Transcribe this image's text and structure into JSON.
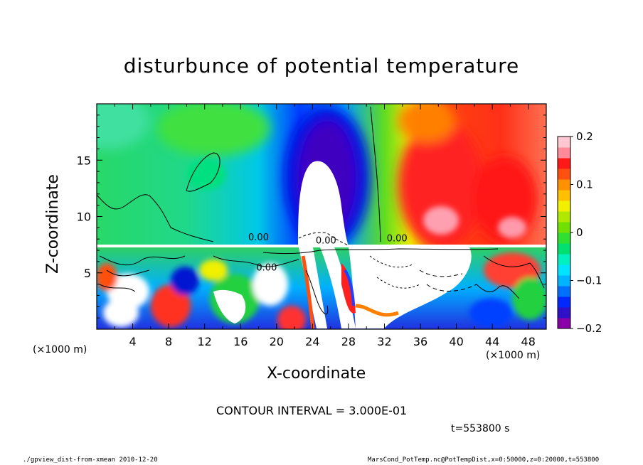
{
  "chart_data": {
    "type": "heatmap",
    "title": "disturbunce of potential temperature",
    "xlabel": "X-coordinate",
    "ylabel": "Z-coordinate",
    "x_unit_label": "(×1000 m)",
    "xlim": [
      0,
      50
    ],
    "ylim": [
      0,
      20
    ],
    "x_ticks": [
      "4",
      "8",
      "12",
      "16",
      "20",
      "24",
      "28",
      "32",
      "36",
      "40",
      "44",
      "48"
    ],
    "x_tick_values": [
      4,
      8,
      12,
      16,
      20,
      24,
      28,
      32,
      36,
      40,
      44,
      48
    ],
    "y_ticks": [
      "5",
      "10",
      "15"
    ],
    "y_tick_values": [
      5,
      10,
      15
    ],
    "colorbar": {
      "range": [
        -0.2,
        0.2
      ],
      "ticks": [
        "0.2",
        "0.1",
        "0",
        "−0.1",
        "−0.2"
      ],
      "tick_values": [
        0.2,
        0.1,
        0,
        -0.1,
        -0.2
      ]
    },
    "contour_interval_text": "CONTOUR INTERVAL = 3.000E-01",
    "contour_labels": [
      "0.00",
      "0.00",
      "0.00",
      "0.00"
    ],
    "features": [
      {
        "kind": "cold anomaly",
        "x_center": 24.5,
        "z_range": [
          7.5,
          20
        ],
        "value_min": -0.2
      },
      {
        "kind": "warm anomaly",
        "x_center": 39,
        "z_range": [
          7.5,
          20
        ],
        "value_max": 0.2
      },
      {
        "kind": "turbulent layer",
        "z_range": [
          0,
          7.5
        ]
      }
    ],
    "grid": false,
    "legend": "colorbar-right"
  },
  "annotations": {
    "time": "t=553800 s",
    "footer_left": "./gpview_dist-from-xmean  2010-12-20",
    "footer_right": "MarsCond_PotTemp.nc@PotTempDist,x=0:50000,z=0:20000,t=553800"
  },
  "colors": {
    "palette": [
      "#8a00a8",
      "#3010c8",
      "#0028ff",
      "#0070ff",
      "#00b4ff",
      "#00e4ff",
      "#00f0c0",
      "#00e070",
      "#30e030",
      "#70e000",
      "#b0e800",
      "#f0f000",
      "#ffc000",
      "#ff9000",
      "#ff5010",
      "#ff1818",
      "#ff8a9a",
      "#ffc8d0"
    ]
  }
}
